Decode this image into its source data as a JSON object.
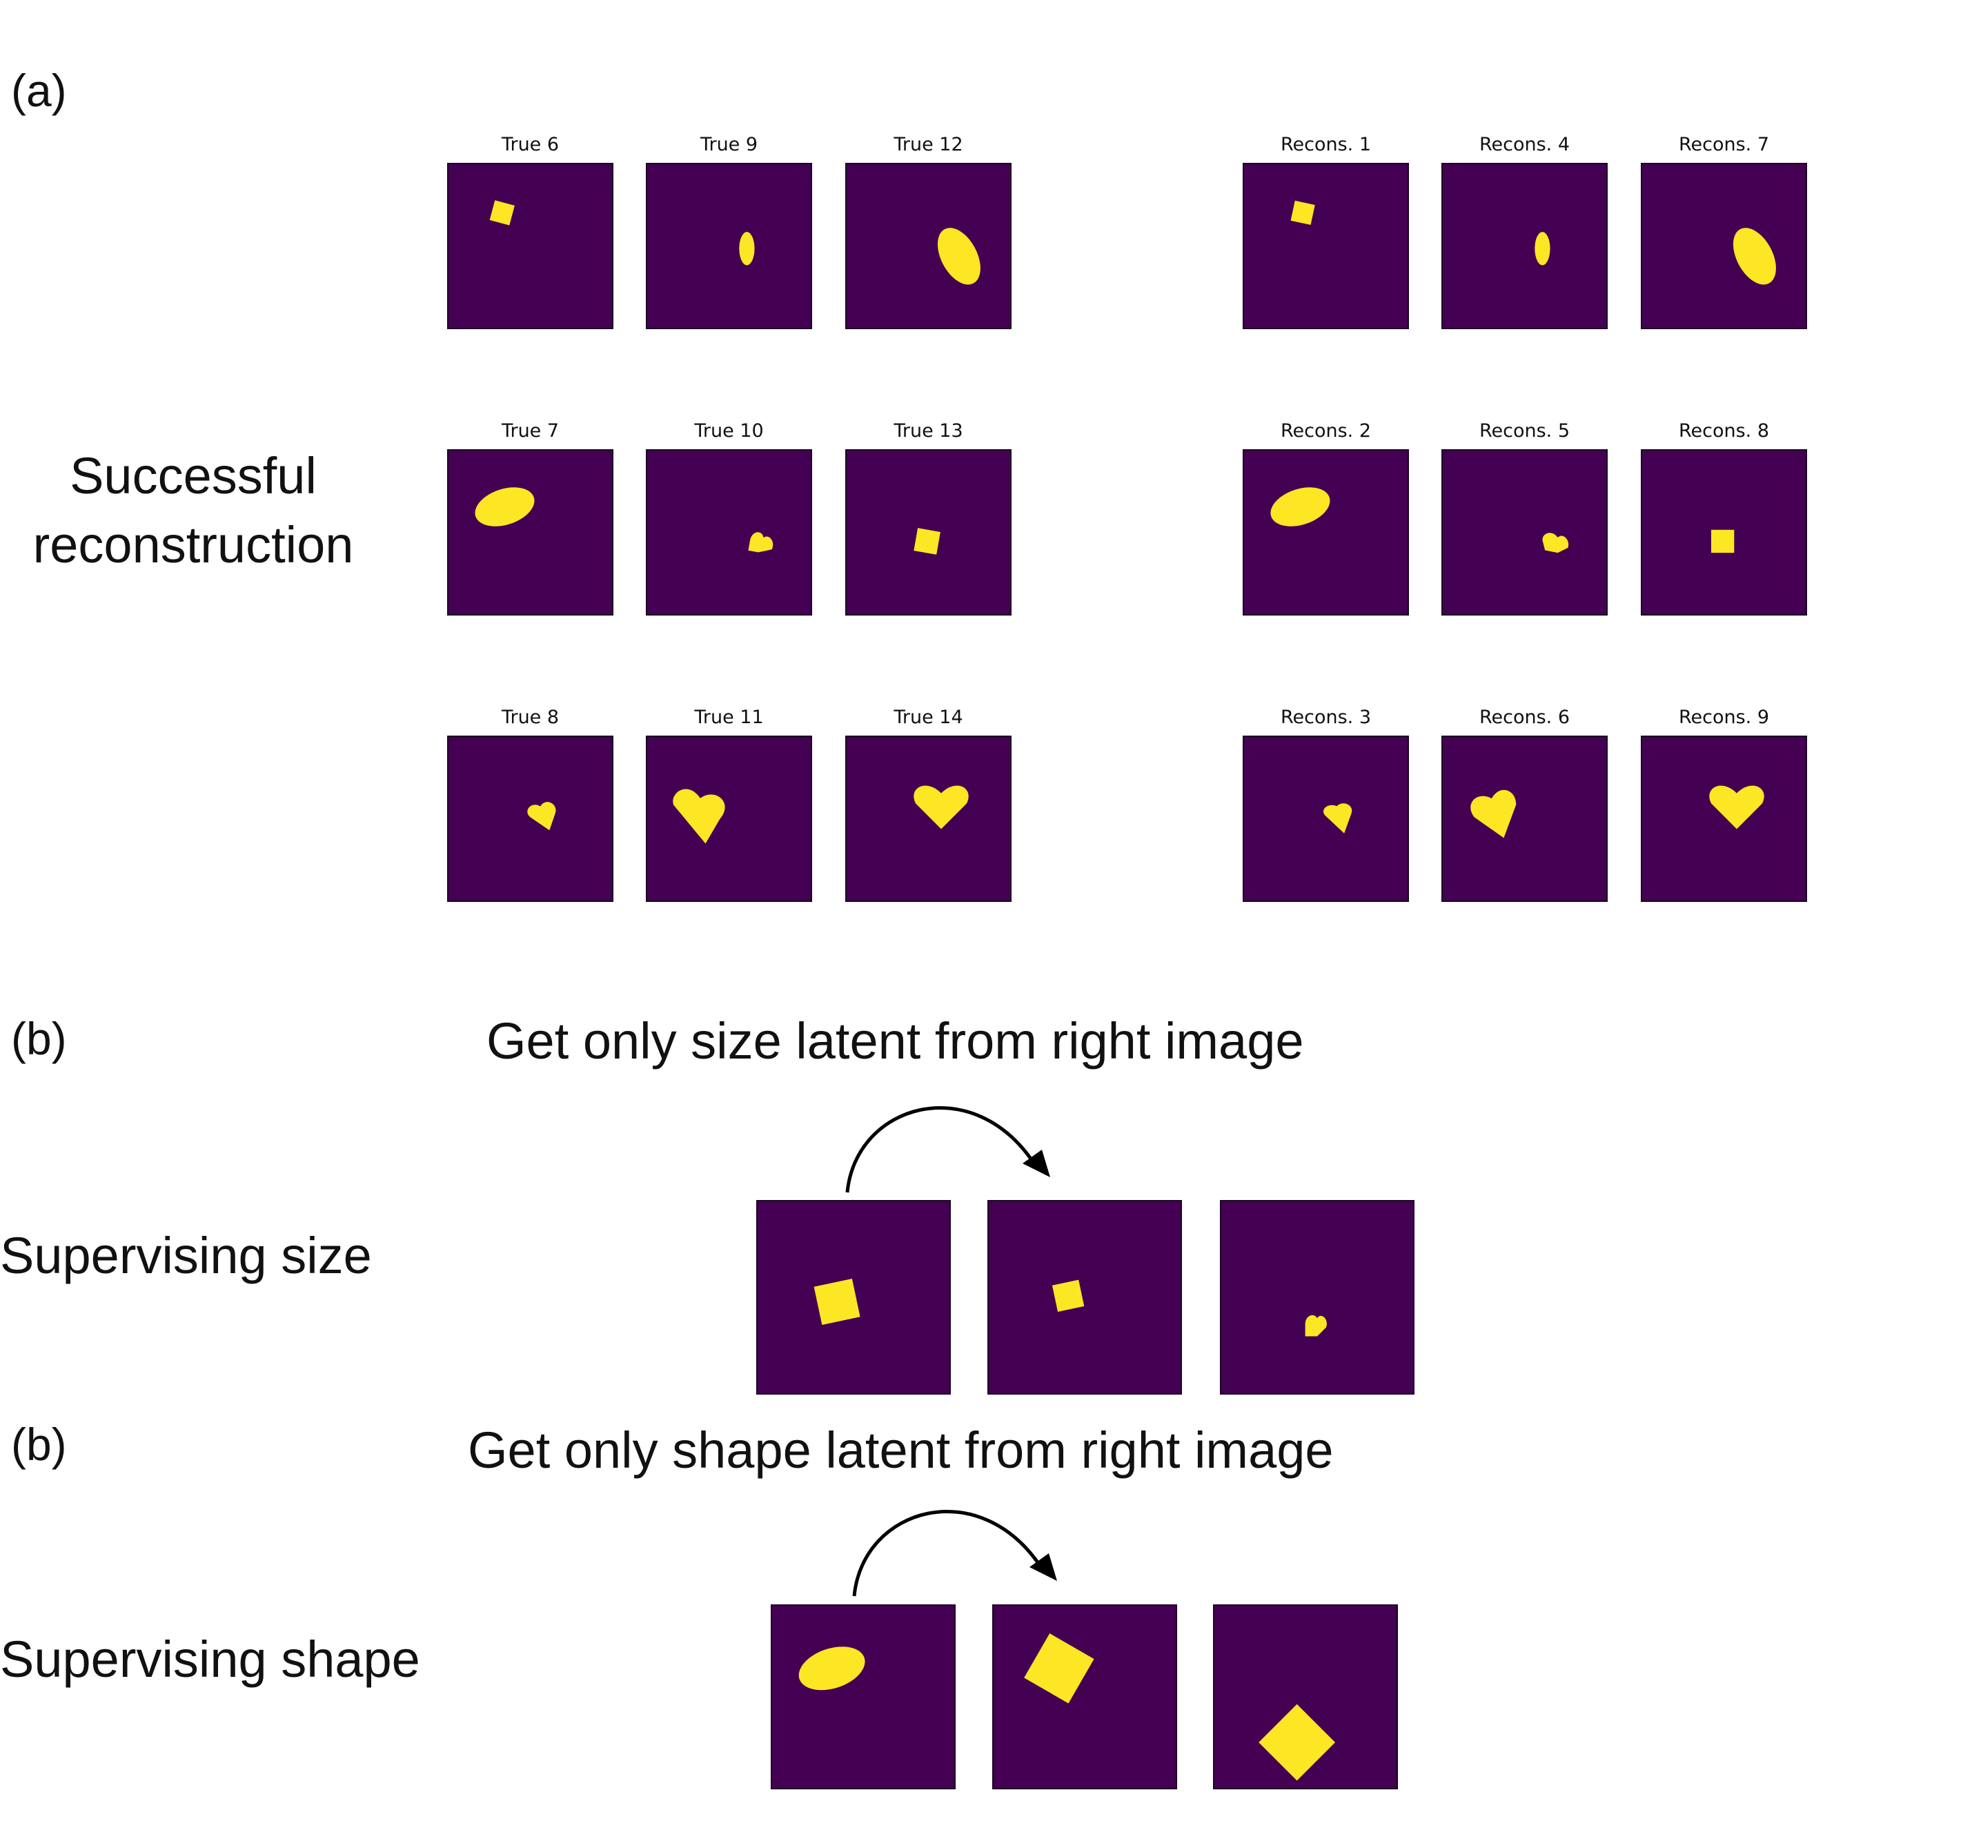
{
  "panel_a": {
    "label": "(a)",
    "row_label_line1": "Successful",
    "row_label_line2": "reconstruction",
    "true_titles": [
      "True 6",
      "True 9",
      "True 12",
      "True 7",
      "True 10",
      "True 13",
      "True 8",
      "True 11",
      "True 14"
    ],
    "recons_titles": [
      "Recons. 1",
      "Recons. 4",
      "Recons. 7",
      "Recons. 2",
      "Recons. 5",
      "Recons. 8",
      "Recons. 3",
      "Recons. 6",
      "Recons. 9"
    ]
  },
  "panel_b_size": {
    "label": "(b)",
    "heading": "Get only size latent from right image",
    "row_label": "Supervising size"
  },
  "panel_b_shape": {
    "label": "(b)",
    "heading": "Get only shape latent from right image",
    "row_label": "Supervising shape"
  },
  "colors": {
    "background_tile": "#440154",
    "shape_fill": "#fde725"
  }
}
